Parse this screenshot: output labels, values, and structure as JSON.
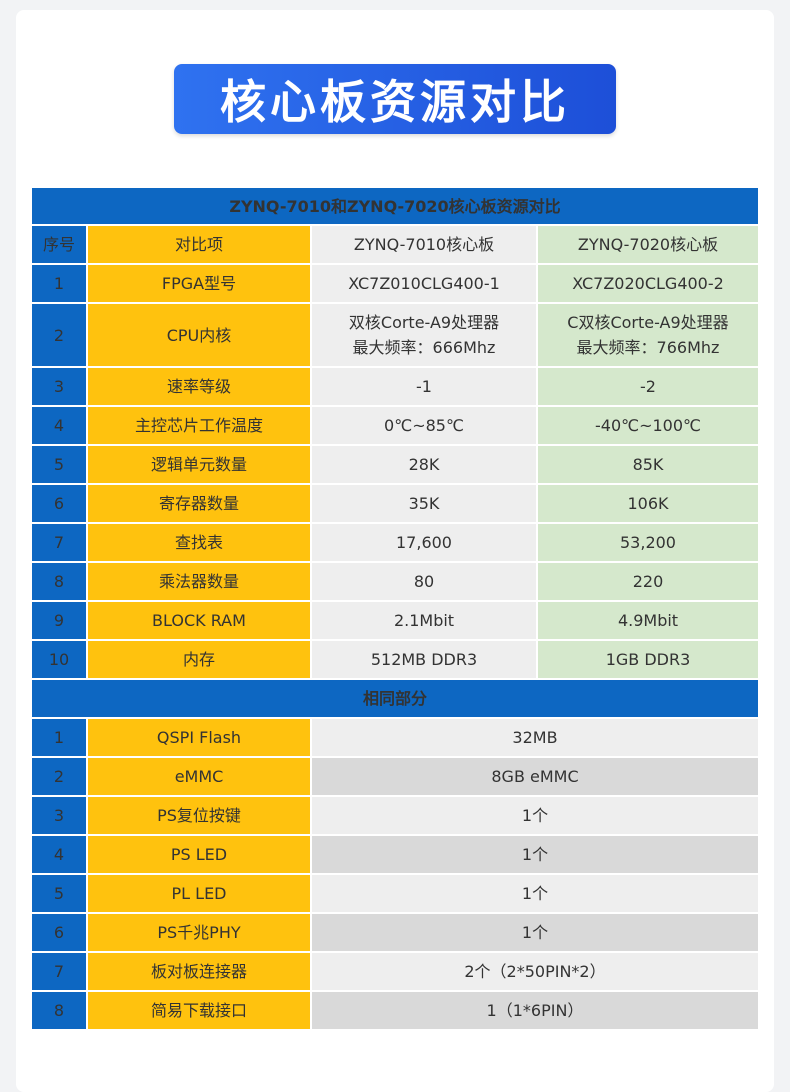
{
  "banner_title": "核心板资源对比",
  "table_title": "ZYNQ-7010和ZYNQ-7020核心板资源对比",
  "columns": {
    "index": "序号",
    "item": "对比项",
    "col1": "ZYNQ-7010核心板",
    "col2": "ZYNQ-7020核心板"
  },
  "compare_rows": [
    {
      "no": "1",
      "item": "FPGA型号",
      "v1": "XC7Z010CLG400-1",
      "v1b": "",
      "v2": "XC7Z020CLG400-2",
      "v2b": ""
    },
    {
      "no": "2",
      "item": "CPU内核",
      "v1": "双核Corte-A9处理器",
      "v1b": "最大频率：666Mhz",
      "v2": "C双核Corte-A9处理器",
      "v2b": "最大频率：766Mhz"
    },
    {
      "no": "3",
      "item": "速率等级",
      "v1": "-1",
      "v1b": "",
      "v2": "-2",
      "v2b": ""
    },
    {
      "no": "4",
      "item": "主控芯片工作温度",
      "v1": "0℃~85℃",
      "v1b": "",
      "v2": "-40℃~100℃",
      "v2b": ""
    },
    {
      "no": "5",
      "item": "逻辑单元数量",
      "v1": "28K",
      "v1b": "",
      "v2": "85K",
      "v2b": ""
    },
    {
      "no": "6",
      "item": "寄存器数量",
      "v1": "35K",
      "v1b": "",
      "v2": "106K",
      "v2b": ""
    },
    {
      "no": "7",
      "item": "查找表",
      "v1": "17,600",
      "v1b": "",
      "v2": "53,200",
      "v2b": ""
    },
    {
      "no": "8",
      "item": "乘法器数量",
      "v1": "80",
      "v1b": "",
      "v2": "220",
      "v2b": ""
    },
    {
      "no": "9",
      "item": "BLOCK RAM",
      "v1": "2.1Mbit",
      "v1b": "",
      "v2": "4.9Mbit",
      "v2b": ""
    },
    {
      "no": "10",
      "item": "内存",
      "v1": "512MB DDR3",
      "v1b": "",
      "v2": "1GB DDR3",
      "v2b": ""
    }
  ],
  "same_section_title": "相同部分",
  "same_rows": [
    {
      "no": "1",
      "item": "QSPI Flash",
      "value": "32MB"
    },
    {
      "no": "2",
      "item": "eMMC",
      "value": "8GB eMMC"
    },
    {
      "no": "3",
      "item": "PS复位按键",
      "value": "1个"
    },
    {
      "no": "4",
      "item": "PS LED",
      "value": "1个"
    },
    {
      "no": "5",
      "item": "PL LED",
      "value": "1个"
    },
    {
      "no": "6",
      "item": "PS千兆PHY",
      "value": "1个"
    },
    {
      "no": "7",
      "item": "板对板连接器",
      "value": "2个（2*50PIN*2）"
    },
    {
      "no": "8",
      "item": "简易下载接口",
      "value": "1（1*6PIN）"
    }
  ],
  "colors": {
    "header_blue": "#0d67c2",
    "item_yellow": "#ffc20e",
    "col1_gray": "#eeeeee",
    "col2_green": "#d5e8cc",
    "banner_blue": "#1d4fd8"
  }
}
